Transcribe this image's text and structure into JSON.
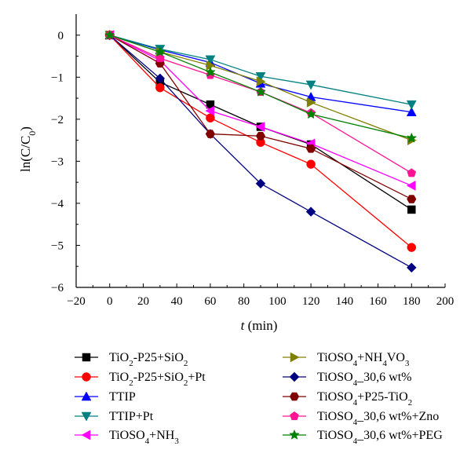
{
  "chart_data": {
    "type": "line",
    "title": "",
    "xlabel": {
      "italic": "t",
      "rest": " (min)"
    },
    "ylabel": {
      "base": "ln(C/C",
      "sub": "0",
      "close": ")"
    },
    "xlim": [
      -20,
      200
    ],
    "ylim": [
      -6,
      0.5
    ],
    "xticks": [
      -20,
      0,
      20,
      40,
      60,
      80,
      100,
      120,
      140,
      160,
      180,
      200
    ],
    "yticks": [
      0,
      -1,
      -2,
      -3,
      -4,
      -5,
      -6
    ],
    "grid": false,
    "legend_position": "bottom",
    "series": [
      {
        "name": "TiO2-P25+SiO2",
        "legend": [
          [
            "TiO",
            ""
          ],
          [
            "2",
            "sub"
          ],
          [
            "-P25+SiO",
            ""
          ],
          [
            "2",
            "sub"
          ]
        ],
        "color": "#000000",
        "marker": "square",
        "x": [
          0,
          30,
          60,
          90,
          120,
          180
        ],
        "y": [
          0,
          -1.12,
          -1.65,
          -2.18,
          -2.6,
          -4.15
        ]
      },
      {
        "name": "TiO2-P25+SiO2+Pt",
        "legend": [
          [
            "TiO",
            ""
          ],
          [
            "2",
            "sub"
          ],
          [
            "-P25+SiO",
            ""
          ],
          [
            "2",
            "sub"
          ],
          [
            "+Pt",
            ""
          ]
        ],
        "color": "#ff0000",
        "marker": "circle",
        "x": [
          0,
          30,
          60,
          90,
          120,
          180
        ],
        "y": [
          0,
          -1.25,
          -1.97,
          -2.55,
          -3.07,
          -5.05
        ]
      },
      {
        "name": "TTIP",
        "legend": [
          [
            "TTIP",
            ""
          ]
        ],
        "color": "#0000ff",
        "marker": "triangle-up",
        "x": [
          0,
          30,
          60,
          90,
          120,
          180
        ],
        "y": [
          0,
          -0.35,
          -0.65,
          -1.15,
          -1.47,
          -1.83
        ]
      },
      {
        "name": "TTIP+Pt",
        "legend": [
          [
            "TTIP+Pt",
            ""
          ]
        ],
        "color": "#008080",
        "marker": "triangle-down",
        "x": [
          0,
          30,
          60,
          90,
          120,
          180
        ],
        "y": [
          0,
          -0.33,
          -0.58,
          -0.98,
          -1.18,
          -1.65
        ]
      },
      {
        "name": "TiOSO4+NH3",
        "legend": [
          [
            "TiOSO",
            ""
          ],
          [
            "4",
            "sub"
          ],
          [
            "+NH",
            ""
          ],
          [
            "3",
            "sub"
          ]
        ],
        "color": "#ff00ff",
        "marker": "triangle-left",
        "x": [
          0,
          30,
          60,
          90,
          120,
          180
        ],
        "y": [
          0,
          -0.6,
          -1.8,
          -2.18,
          -2.58,
          -3.58
        ]
      },
      {
        "name": "TiOSO4+NH4VO3",
        "legend": [
          [
            "TiOSO",
            ""
          ],
          [
            "4",
            "sub"
          ],
          [
            "+NH",
            ""
          ],
          [
            "4",
            "sub"
          ],
          [
            "VO",
            ""
          ],
          [
            "3",
            "sub"
          ]
        ],
        "color": "#808000",
        "marker": "triangle-right",
        "x": [
          0,
          30,
          60,
          90,
          120,
          180
        ],
        "y": [
          0,
          -0.4,
          -0.72,
          -1.1,
          -1.6,
          -2.5
        ]
      },
      {
        "name": "TiOSO4_30,6 wt%",
        "legend": [
          [
            "TiOSO",
            ""
          ],
          [
            "4",
            "sub"
          ],
          [
            "_30,6 wt%",
            ""
          ]
        ],
        "color": "#000080",
        "marker": "diamond",
        "x": [
          0,
          30,
          60,
          90,
          120,
          180
        ],
        "y": [
          0,
          -1.03,
          -2.35,
          -3.53,
          -4.2,
          -5.53
        ]
      },
      {
        "name": "TiOSO4+P25-TiO2",
        "legend": [
          [
            "TiOSO",
            ""
          ],
          [
            "4",
            "sub"
          ],
          [
            "+P25-TiO",
            ""
          ],
          [
            "2",
            "sub"
          ]
        ],
        "color": "#800000",
        "marker": "hexagon",
        "x": [
          0,
          30,
          60,
          90,
          120,
          180
        ],
        "y": [
          0,
          -0.67,
          -2.35,
          -2.4,
          -2.7,
          -3.9
        ]
      },
      {
        "name": "TiOSO4_30,6 wt%+Zno",
        "legend": [
          [
            "TiOSO",
            ""
          ],
          [
            "4",
            "sub"
          ],
          [
            "_30,6 wt%+Zno",
            ""
          ]
        ],
        "color": "#ff1493",
        "marker": "pentagon",
        "x": [
          0,
          30,
          60,
          90,
          120,
          180
        ],
        "y": [
          0,
          -0.55,
          -0.95,
          -1.35,
          -1.85,
          -3.28
        ]
      },
      {
        "name": "TiOSO4_30,6 wt%+PEG",
        "legend": [
          [
            "TiOSO",
            ""
          ],
          [
            "4",
            "sub"
          ],
          [
            "_30,6 wt%+PEG",
            ""
          ]
        ],
        "color": "#008000",
        "marker": "star",
        "x": [
          0,
          30,
          60,
          90,
          120,
          180
        ],
        "y": [
          0,
          -0.4,
          -0.88,
          -1.35,
          -1.88,
          -2.45
        ]
      }
    ]
  }
}
